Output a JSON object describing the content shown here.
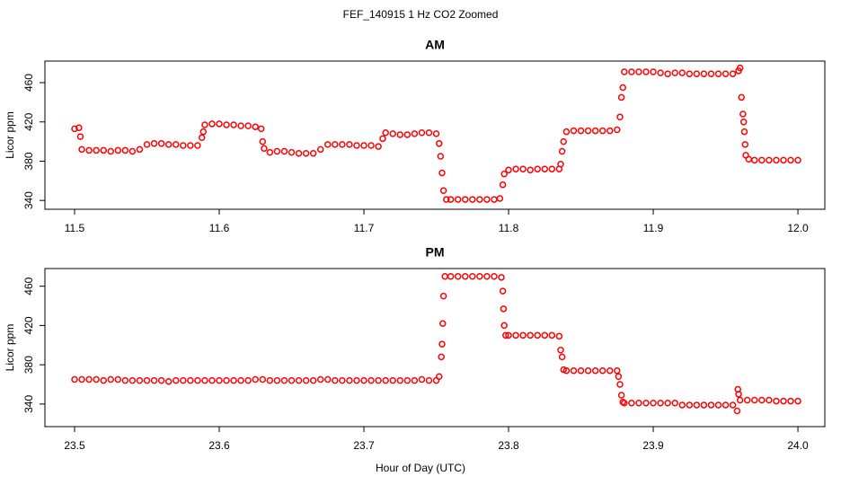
{
  "title": "FEF_140915  1 Hz CO2 Zoomed",
  "xlabel": "Hour of Day (UTC)",
  "chart_data": [
    {
      "type": "scatter",
      "title": "AM",
      "ylabel": "Licor ppm",
      "color": "#ff0000",
      "xlim": [
        11.4795,
        12.0186
      ],
      "ylim": [
        331,
        482
      ],
      "xticks": [
        11.5,
        11.6,
        11.7,
        11.8,
        11.9,
        {
          "value": 12,
          "label": "12.0"
        }
      ],
      "yticks": [
        340,
        380,
        420,
        460
      ],
      "x": [
        11.5,
        11.503,
        11.504,
        11.505,
        11.51,
        11.515,
        11.52,
        11.525,
        11.53,
        11.535,
        11.54,
        11.545,
        11.55,
        11.555,
        11.56,
        11.565,
        11.57,
        11.575,
        11.58,
        11.585,
        11.588,
        11.589,
        11.59,
        11.595,
        11.6,
        11.605,
        11.61,
        11.615,
        11.62,
        11.625,
        11.629,
        11.63,
        11.631,
        11.635,
        11.64,
        11.645,
        11.65,
        11.655,
        11.66,
        11.665,
        11.67,
        11.675,
        11.68,
        11.685,
        11.69,
        11.695,
        11.7,
        11.705,
        11.71,
        11.713,
        11.715,
        11.72,
        11.725,
        11.73,
        11.735,
        11.74,
        11.745,
        11.75,
        11.752,
        11.753,
        11.754,
        11.755,
        11.757,
        11.76,
        11.765,
        11.77,
        11.775,
        11.78,
        11.785,
        11.79,
        11.794,
        11.796,
        11.797,
        11.8,
        11.805,
        11.81,
        11.815,
        11.82,
        11.825,
        11.83,
        11.835,
        11.836,
        11.837,
        11.838,
        11.84,
        11.845,
        11.85,
        11.855,
        11.86,
        11.865,
        11.87,
        11.875,
        11.877,
        11.878,
        11.879,
        11.88,
        11.885,
        11.89,
        11.895,
        11.9,
        11.905,
        11.91,
        11.915,
        11.92,
        11.925,
        11.93,
        11.935,
        11.94,
        11.945,
        11.95,
        11.955,
        11.959,
        11.96,
        11.961,
        11.962,
        11.9625,
        11.963,
        11.9635,
        11.964,
        11.966,
        11.97,
        11.975,
        11.98,
        11.985,
        11.99,
        11.995,
        12
      ],
      "values": [
        413,
        414,
        405,
        392,
        391,
        391,
        391,
        390,
        391,
        391,
        390,
        392,
        397,
        398,
        398,
        397,
        397,
        396,
        396,
        396,
        404,
        410,
        417,
        418,
        418,
        417,
        417,
        416,
        416,
        415,
        413,
        400,
        393,
        389,
        390,
        390,
        389,
        388,
        388,
        388,
        392,
        397,
        397,
        397,
        397,
        396,
        396,
        396,
        395,
        403,
        409,
        408,
        407,
        407,
        408,
        409,
        409,
        408,
        398,
        385,
        368,
        350,
        341,
        341,
        341,
        341,
        341,
        341,
        341,
        341,
        342,
        356,
        367,
        371,
        372,
        372,
        371,
        372,
        372,
        372,
        372,
        377,
        390,
        400,
        410,
        411,
        411,
        411,
        411,
        411,
        411,
        412,
        425,
        445,
        455,
        471,
        471,
        471,
        471,
        471,
        470,
        469,
        470,
        470,
        469,
        469,
        469,
        469,
        469,
        469,
        469,
        472,
        475,
        445,
        428,
        420,
        410,
        397,
        386,
        382,
        381,
        381,
        381,
        381,
        381,
        381,
        381
      ]
    },
    {
      "type": "scatter",
      "title": "PM",
      "ylabel": "Licor ppm",
      "color": "#ff0000",
      "xlim": [
        23.4795,
        24.0186
      ],
      "ylim": [
        317,
        478
      ],
      "xticks": [
        23.5,
        23.6,
        23.7,
        23.8,
        23.9,
        {
          "value": 24,
          "label": "24.0"
        }
      ],
      "yticks": [
        340,
        380,
        420,
        460
      ],
      "x": [
        23.5,
        23.505,
        23.51,
        23.515,
        23.52,
        23.525,
        23.53,
        23.535,
        23.54,
        23.545,
        23.55,
        23.555,
        23.56,
        23.565,
        23.57,
        23.575,
        23.58,
        23.585,
        23.59,
        23.595,
        23.6,
        23.605,
        23.61,
        23.615,
        23.62,
        23.625,
        23.63,
        23.635,
        23.64,
        23.645,
        23.65,
        23.655,
        23.66,
        23.665,
        23.67,
        23.675,
        23.68,
        23.685,
        23.69,
        23.695,
        23.7,
        23.705,
        23.71,
        23.715,
        23.72,
        23.725,
        23.73,
        23.735,
        23.74,
        23.745,
        23.75,
        23.752,
        23.7535,
        23.754,
        23.7545,
        23.755,
        23.756,
        23.76,
        23.765,
        23.77,
        23.775,
        23.78,
        23.785,
        23.79,
        23.795,
        23.796,
        23.7965,
        23.797,
        23.798,
        23.8,
        23.805,
        23.81,
        23.815,
        23.82,
        23.825,
        23.83,
        23.835,
        23.836,
        23.837,
        23.838,
        23.84,
        23.845,
        23.85,
        23.855,
        23.86,
        23.865,
        23.87,
        23.875,
        23.876,
        23.877,
        23.878,
        23.879,
        23.88,
        23.885,
        23.89,
        23.895,
        23.9,
        23.905,
        23.91,
        23.915,
        23.92,
        23.925,
        23.93,
        23.935,
        23.94,
        23.945,
        23.95,
        23.955,
        23.958,
        23.9585,
        23.959,
        23.96,
        23.965,
        23.97,
        23.975,
        23.98,
        23.985,
        23.99,
        23.995,
        24
      ],
      "values": [
        365,
        365,
        365,
        365,
        364,
        365,
        365,
        364,
        364,
        364,
        364,
        364,
        364,
        363,
        364,
        364,
        364,
        364,
        364,
        364,
        364,
        364,
        364,
        364,
        364,
        365,
        365,
        364,
        364,
        364,
        364,
        364,
        364,
        364,
        365,
        365,
        364,
        364,
        364,
        364,
        364,
        364,
        364,
        364,
        364,
        364,
        364,
        364,
        365,
        364,
        364,
        368,
        388,
        401,
        422,
        450,
        470,
        470,
        470,
        470,
        470,
        470,
        470,
        470,
        469,
        455,
        437,
        420,
        410,
        410,
        410,
        410,
        410,
        410,
        410,
        410,
        409,
        395,
        388,
        375,
        374,
        374,
        374,
        374,
        374,
        374,
        374,
        374,
        368,
        360,
        349,
        342,
        341,
        341,
        341,
        341,
        341,
        341,
        341,
        341,
        339,
        339,
        339,
        339,
        339,
        339,
        339,
        339,
        333,
        355,
        350,
        344,
        344,
        344,
        344,
        344,
        343,
        343,
        343,
        343
      ]
    }
  ]
}
